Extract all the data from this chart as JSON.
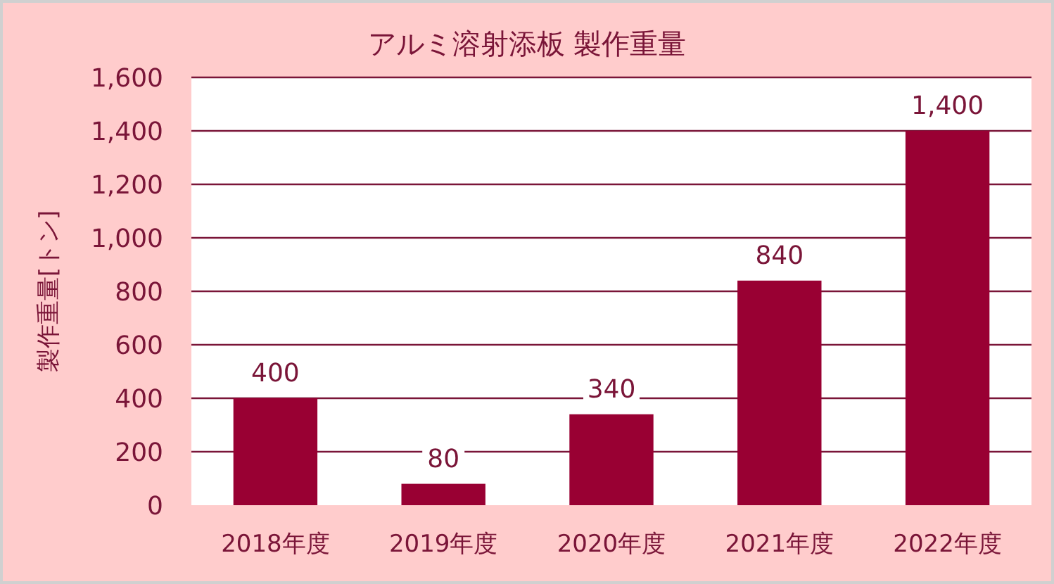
{
  "chart_data": {
    "type": "bar",
    "title": "アルミ溶射添板 製作重量",
    "ylabel": "製作重量[トン]",
    "categories": [
      "2018年度",
      "2019年度",
      "2020年度",
      "2021年度",
      "2022年度"
    ],
    "values": [
      400,
      80,
      340,
      840,
      1400
    ],
    "color": "#990033",
    "ylim": [
      0,
      1600
    ],
    "yticks": [
      {
        "value": 0,
        "label": "0"
      },
      {
        "value": 200,
        "label": "200"
      },
      {
        "value": 400,
        "label": "400"
      },
      {
        "value": 600,
        "label": "600"
      },
      {
        "value": 800,
        "label": "800"
      },
      {
        "value": 1000,
        "label": "1,000"
      },
      {
        "value": 1200,
        "label": "1,200"
      },
      {
        "value": 1400,
        "label": "1,400"
      },
      {
        "value": 1600,
        "label": "1,600"
      }
    ],
    "grid": "y",
    "value_labels": [
      "400",
      "80",
      "340",
      "840",
      "1,400"
    ]
  }
}
